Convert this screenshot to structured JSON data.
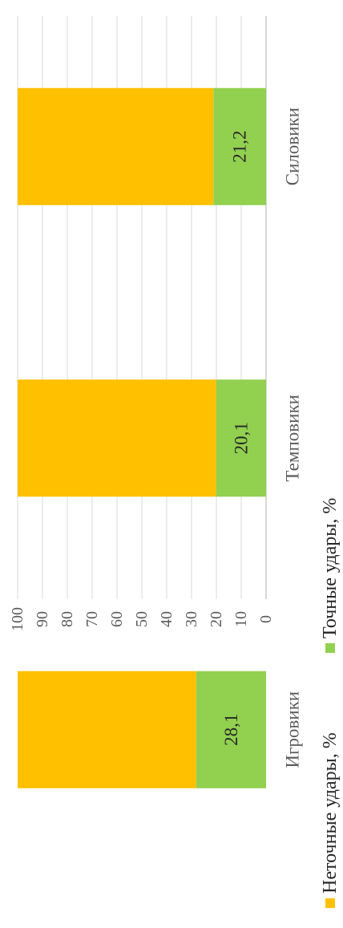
{
  "chart_data": {
    "type": "bar",
    "stacked": true,
    "orientation": "vertical",
    "rotated_on_page": true,
    "categories": [
      "Силовики",
      "Темповики",
      "Игровики"
    ],
    "series": [
      {
        "name": "Точные удары, %",
        "values": [
          21.2,
          20.1,
          28.1
        ],
        "data_labels": [
          "21,2",
          "20,1",
          "28,1"
        ],
        "color": "#92d050"
      },
      {
        "name": "Неточные удары, %",
        "values": [
          78.8,
          79.9,
          71.9
        ],
        "color": "#ffc000"
      }
    ],
    "ylim": [
      0,
      100
    ],
    "y_ticks": [
      "0",
      "10",
      "20",
      "30",
      "40",
      "50",
      "60",
      "70",
      "80",
      "90",
      "100"
    ],
    "grid": true,
    "legend_position": "bottom",
    "legend": [
      "Неточные удары, %",
      "Точные удары, %"
    ]
  }
}
